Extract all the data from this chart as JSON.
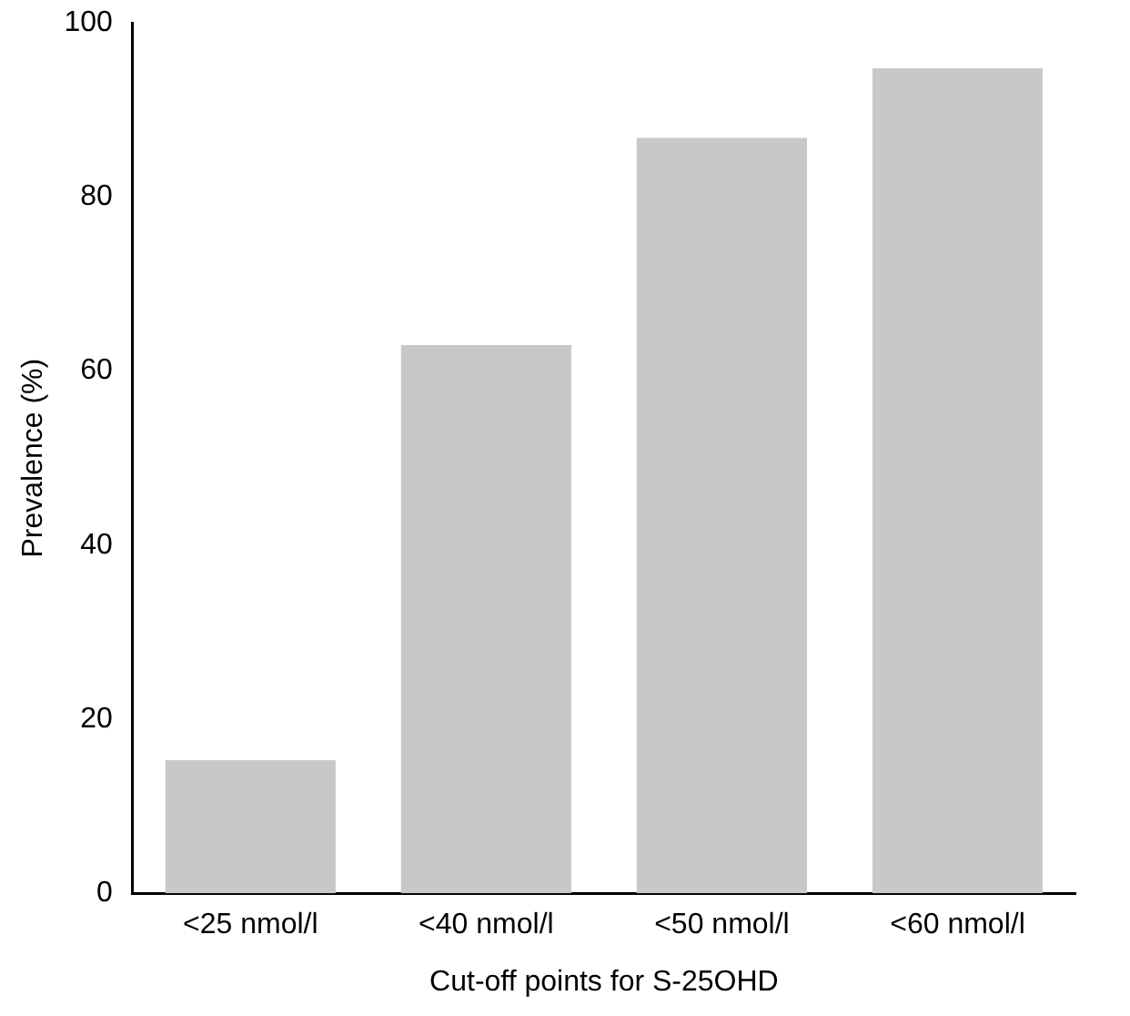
{
  "chart_data": {
    "type": "bar",
    "xlabel": "Cut-off points for S-25OHD",
    "ylabel": "Prevalence (%)",
    "categories": [
      "<25 nmol/l",
      "<40 nmol/l",
      "<50 nmol/l",
      "<60 nmol/l"
    ],
    "values": [
      15.3,
      63,
      86.8,
      94.8
    ],
    "color": "#c8c8c8",
    "ylim": [
      0,
      100
    ],
    "yticks": [
      0,
      20,
      40,
      60,
      80,
      100
    ],
    "grid": false
  }
}
